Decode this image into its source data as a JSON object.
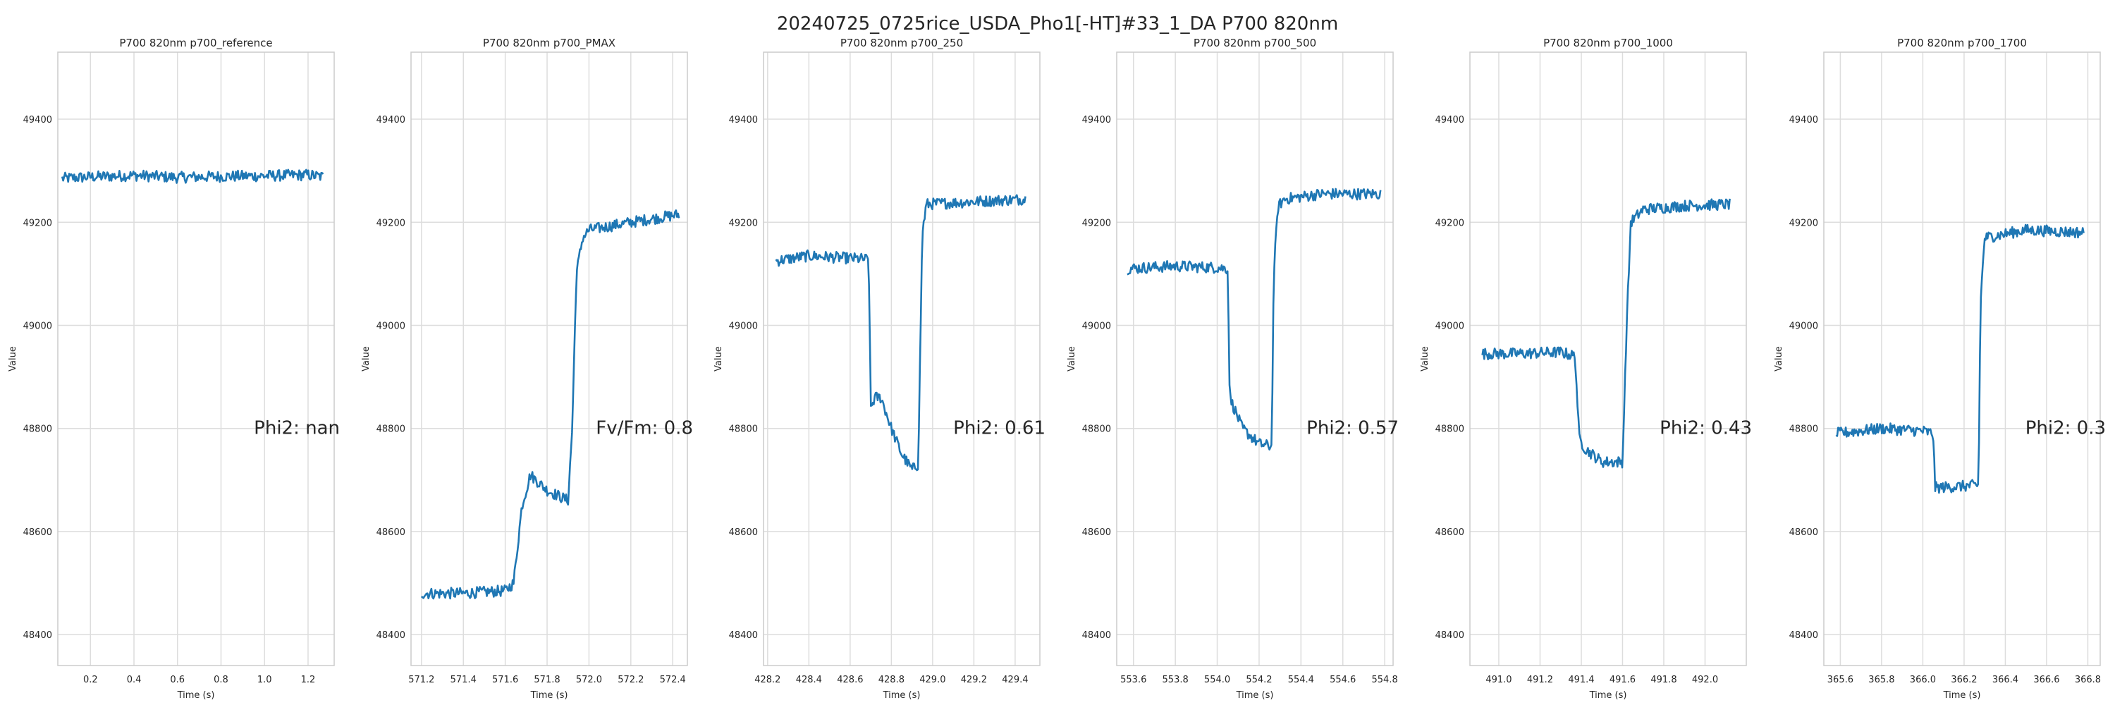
{
  "figure": {
    "title": "20240725_0725rice_USDA_Pho1[-HT]#33_1_DA P700 820nm"
  },
  "colors": {
    "line": "#1f77b4",
    "grid": "#dddddd",
    "spine": "#cccccc",
    "text": "#262626"
  },
  "chart_data": [
    {
      "type": "line",
      "title": "P700 820nm p700_reference",
      "xlabel": "Time (s)",
      "ylabel": "Value",
      "xlim": [
        0.05,
        1.32
      ],
      "ylim": [
        48340,
        49530
      ],
      "xticks": [
        0.2,
        0.4,
        0.6,
        0.8,
        1.0,
        1.2
      ],
      "xtick_labels": [
        "0.2",
        "0.4",
        "0.6",
        "0.8",
        "1.0",
        "1.2"
      ],
      "yticks": [
        48400,
        48600,
        48800,
        49000,
        49200,
        49400
      ],
      "ytick_labels": [
        "48400",
        "48600",
        "48800",
        "49000",
        "49200",
        "49400"
      ],
      "grid": true,
      "annotation": "Phi2: nan",
      "series": [
        {
          "x": [
            0.07,
            0.2,
            0.4,
            0.6,
            0.8,
            1.0,
            1.2,
            1.27
          ],
          "y": [
            49285,
            49288,
            49291,
            49287,
            49289,
            49290,
            49292,
            49288
          ]
        }
      ]
    },
    {
      "type": "line",
      "title": "P700 820nm p700_PMAX",
      "xlabel": "Time (s)",
      "ylabel": "Value",
      "xlim": [
        571.15,
        572.47
      ],
      "ylim": [
        48340,
        49530
      ],
      "xticks": [
        571.2,
        571.4,
        571.6,
        571.8,
        572.0,
        572.2,
        572.4
      ],
      "xtick_labels": [
        "571.2",
        "571.4",
        "571.6",
        "571.8",
        "572.0",
        "572.2",
        "572.4"
      ],
      "yticks": [
        48400,
        48600,
        48800,
        49000,
        49200,
        49400
      ],
      "ytick_labels": [
        "48400",
        "48600",
        "48800",
        "49000",
        "49200",
        "49400"
      ],
      "grid": true,
      "annotation": "Fv/Fm: 0.8",
      "series": [
        {
          "x": [
            571.2,
            571.4,
            571.6,
            571.64,
            571.68,
            571.72,
            571.8,
            571.9,
            571.92,
            571.94,
            571.97,
            572.0,
            572.2,
            572.43
          ],
          "y": [
            48480,
            48480,
            48485,
            48500,
            48650,
            48710,
            48680,
            48660,
            48800,
            49100,
            49170,
            49185,
            49200,
            49215
          ]
        }
      ]
    },
    {
      "type": "line",
      "title": "P700 820nm p700_250",
      "xlabel": "Time (s)",
      "ylabel": "Value",
      "xlim": [
        428.18,
        429.52
      ],
      "ylim": [
        48340,
        49530
      ],
      "xticks": [
        428.2,
        428.4,
        428.6,
        428.8,
        429.0,
        429.2,
        429.4
      ],
      "xtick_labels": [
        "428.2",
        "428.4",
        "428.6",
        "428.8",
        "429.0",
        "429.2",
        "429.4"
      ],
      "yticks": [
        48400,
        48600,
        48800,
        49000,
        49200,
        49400
      ],
      "ytick_labels": [
        "48400",
        "48600",
        "48800",
        "49000",
        "49200",
        "49400"
      ],
      "grid": true,
      "annotation": "Phi2: 0.61",
      "series": [
        {
          "x": [
            428.24,
            428.4,
            428.6,
            428.69,
            428.7,
            428.72,
            428.75,
            428.8,
            428.85,
            428.9,
            428.93,
            428.95,
            428.97,
            429.2,
            429.45
          ],
          "y": [
            49125,
            49135,
            49130,
            49128,
            48840,
            48860,
            48860,
            48800,
            48750,
            48720,
            48730,
            49180,
            49235,
            49240,
            49245
          ]
        }
      ]
    },
    {
      "type": "line",
      "title": "P700 820nm p700_500",
      "xlabel": "Time (s)",
      "ylabel": "Value",
      "xlim": [
        553.52,
        554.84
      ],
      "ylim": [
        48340,
        49530
      ],
      "xticks": [
        553.6,
        553.8,
        554.0,
        554.2,
        554.4,
        554.6,
        554.8
      ],
      "xtick_labels": [
        "553.6",
        "553.8",
        "554.0",
        "554.2",
        "554.4",
        "554.6",
        "554.8"
      ],
      "yticks": [
        48400,
        48600,
        48800,
        49000,
        49200,
        49400
      ],
      "ytick_labels": [
        "48400",
        "48600",
        "48800",
        "49000",
        "49200",
        "49400"
      ],
      "grid": true,
      "annotation": "Phi2: 0.57",
      "series": [
        {
          "x": [
            553.57,
            553.8,
            554.0,
            554.05,
            554.06,
            554.08,
            554.12,
            554.2,
            554.26,
            554.27,
            554.29,
            554.32,
            554.5,
            554.78
          ],
          "y": [
            49110,
            49115,
            49112,
            49110,
            48860,
            48840,
            48800,
            48770,
            48765,
            49100,
            49230,
            49245,
            49255,
            49255
          ]
        }
      ]
    },
    {
      "type": "line",
      "title": "P700 820nm p700_1000",
      "xlabel": "Time (s)",
      "ylabel": "Value",
      "xlim": [
        490.86,
        492.2
      ],
      "ylim": [
        48340,
        49530
      ],
      "xticks": [
        491.0,
        491.2,
        491.4,
        491.6,
        491.8,
        492.0
      ],
      "xtick_labels": [
        "491.0",
        "491.2",
        "491.4",
        "491.6",
        "491.8",
        "492.0"
      ],
      "yticks": [
        48400,
        48600,
        48800,
        49000,
        49200,
        49400
      ],
      "ytick_labels": [
        "48400",
        "48600",
        "48800",
        "49000",
        "49200",
        "49400"
      ],
      "grid": true,
      "annotation": "Phi2: 0.43",
      "series": [
        {
          "x": [
            490.92,
            491.1,
            491.3,
            491.37,
            491.39,
            491.42,
            491.5,
            491.6,
            491.62,
            491.64,
            491.7,
            491.9,
            492.12
          ],
          "y": [
            48945,
            48945,
            48948,
            48940,
            48780,
            48760,
            48735,
            48735,
            49000,
            49200,
            49225,
            49232,
            49235
          ]
        }
      ]
    },
    {
      "type": "line",
      "title": "P700 820nm p700_1700",
      "xlabel": "Time (s)",
      "ylabel": "Value",
      "xlim": [
        365.52,
        366.86
      ],
      "ylim": [
        48340,
        49530
      ],
      "xticks": [
        365.6,
        365.8,
        366.0,
        366.2,
        366.4,
        366.6,
        366.8
      ],
      "xtick_labels": [
        "365.6",
        "365.8",
        "366.0",
        "366.2",
        "366.4",
        "366.6",
        "366.8"
      ],
      "yticks": [
        48400,
        48600,
        48800,
        49000,
        49200,
        49400
      ],
      "ytick_labels": [
        "48400",
        "48600",
        "48800",
        "49000",
        "49200",
        "49400"
      ],
      "grid": true,
      "annotation": "Phi2: 0.3",
      "series": [
        {
          "x": [
            365.58,
            365.8,
            366.0,
            366.05,
            366.06,
            366.2,
            366.27,
            366.28,
            366.3,
            366.5,
            366.78
          ],
          "y": [
            48790,
            48800,
            48795,
            48790,
            48685,
            48688,
            48690,
            49050,
            49170,
            49185,
            49180
          ]
        }
      ]
    }
  ]
}
